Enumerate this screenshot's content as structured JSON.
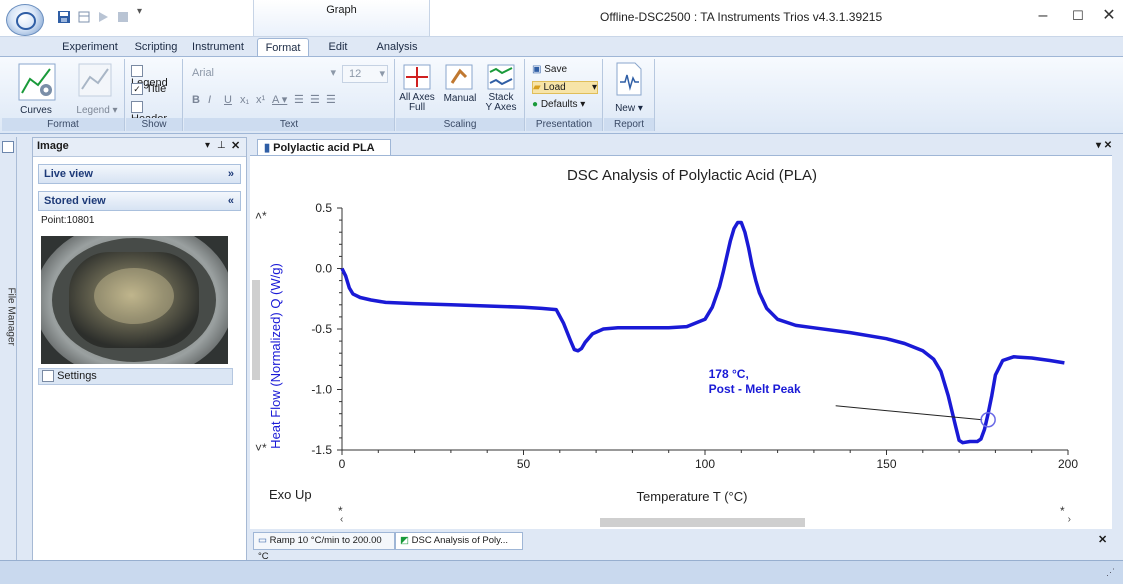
{
  "window": {
    "title": "Offline-DSC2500 : TA Instruments Trios v4.3.1.39215",
    "context_tab": "Graph"
  },
  "tabs": [
    "Experiment",
    "Scripting",
    "Instrument",
    "Format",
    "Edit",
    "Analysis"
  ],
  "active_tab": "Format",
  "ribbon": {
    "format_group": {
      "label": "Format",
      "curves": "Curves",
      "legend": "Legend"
    },
    "show_group": {
      "label": "Show",
      "legend": "Legend",
      "title": "Title",
      "header": "Header",
      "title_checked": true
    },
    "text_group": {
      "label": "Text",
      "font": "Arial",
      "size": "12"
    },
    "scaling_group": {
      "label": "Scaling",
      "all_axes_1": "All Axes",
      "all_axes_2": "Full",
      "manual": "Manual",
      "stack_1": "Stack",
      "stack_2": "Y Axes"
    },
    "presentation_group": {
      "label": "Presentation",
      "save": "Save",
      "load": "Load",
      "defaults": "Defaults"
    },
    "report_group": {
      "label": "Report",
      "new": "New"
    }
  },
  "sidebar": {
    "file_manager": "File Manager"
  },
  "image_panel": {
    "title": "Image",
    "live_view": "Live view",
    "stored_view": "Stored view",
    "point_label": "Point:10801",
    "settings": "Settings"
  },
  "document": {
    "tab_title": "Polylactic acid PLA"
  },
  "chart_data": {
    "type": "line",
    "title": "DSC Analysis of Polylactic Acid (PLA)",
    "xlabel": "Temperature  T  (°C)",
    "ylabel": "Heat Flow (Normalized)  Q  (W/g)",
    "exo_label": "Exo Up",
    "xlim": [
      0,
      200
    ],
    "ylim": [
      -1.5,
      0.5
    ],
    "xticks": [
      0,
      50,
      100,
      150,
      200
    ],
    "yticks": [
      0.5,
      0.0,
      -0.5,
      -1.0,
      -1.5
    ],
    "ytick_labels": [
      "0.5",
      "0.0",
      "-0.5",
      "-1.0",
      "-1.5"
    ],
    "line_color": "#1a1ad6",
    "series": [
      {
        "x": [
          0,
          1,
          2,
          3,
          5,
          8,
          12,
          20,
          30,
          40,
          50,
          55,
          59,
          61,
          63,
          64,
          65,
          66,
          67,
          69,
          72,
          76,
          80,
          85,
          90,
          95,
          100,
          102,
          104,
          105,
          106,
          107,
          108,
          109,
          110,
          111,
          112,
          113,
          114,
          115,
          117,
          120,
          125,
          130,
          140,
          150,
          155,
          160,
          163,
          165,
          167,
          169,
          170,
          171,
          173,
          175,
          176,
          177,
          178,
          179,
          180,
          182,
          185,
          190,
          195,
          199
        ],
        "y": [
          0.0,
          -0.06,
          -0.16,
          -0.21,
          -0.24,
          -0.26,
          -0.28,
          -0.29,
          -0.3,
          -0.31,
          -0.32,
          -0.33,
          -0.34,
          -0.45,
          -0.6,
          -0.67,
          -0.68,
          -0.66,
          -0.61,
          -0.54,
          -0.5,
          -0.49,
          -0.49,
          -0.49,
          -0.49,
          -0.48,
          -0.42,
          -0.32,
          -0.15,
          -0.03,
          0.1,
          0.23,
          0.33,
          0.38,
          0.38,
          0.3,
          0.17,
          0.02,
          -0.1,
          -0.2,
          -0.33,
          -0.42,
          -0.47,
          -0.49,
          -0.53,
          -0.58,
          -0.62,
          -0.68,
          -0.75,
          -0.85,
          -1.05,
          -1.3,
          -1.42,
          -1.44,
          -1.43,
          -1.43,
          -1.41,
          -1.33,
          -1.2,
          -1.05,
          -0.88,
          -0.76,
          -0.73,
          -0.74,
          -0.76,
          -0.78
        ]
      }
    ],
    "annotation": {
      "line1": "178 °C,",
      "line2": "Post - Melt Peak",
      "x": 178,
      "y": -1.25,
      "color": "#1a1ad6"
    }
  },
  "doc_tabs": [
    "Ramp 10 °C/min to 200.00 °C",
    "DSC Analysis of Poly..."
  ]
}
